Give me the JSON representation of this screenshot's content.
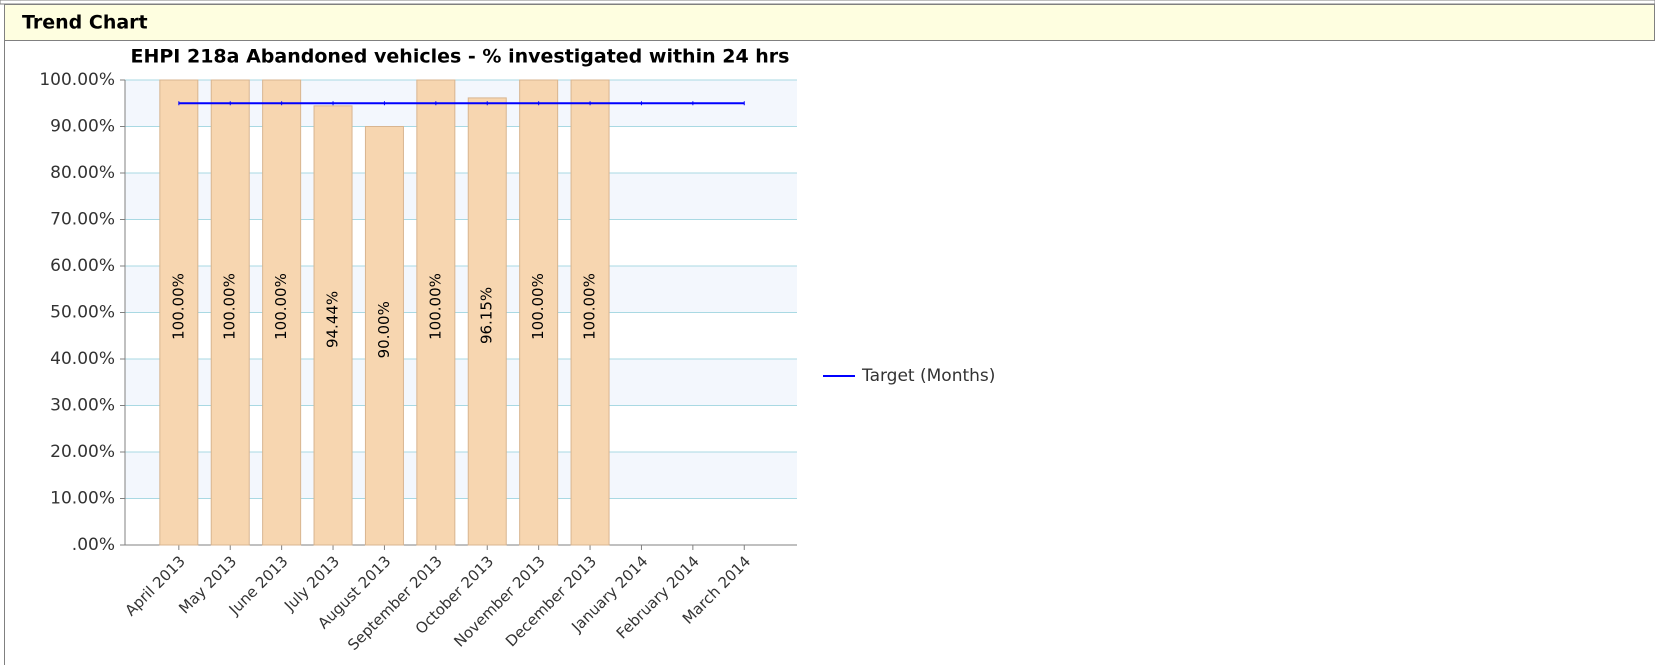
{
  "header": {
    "title": "Trend Chart"
  },
  "chart_data": {
    "type": "bar",
    "title": "EHPI 218a Abandoned vehicles - % investigated within 24 hrs",
    "categories": [
      "April 2013",
      "May 2013",
      "June 2013",
      "July 2013",
      "August 2013",
      "September 2013",
      "October 2013",
      "November 2013",
      "December 2013",
      "January 2014",
      "February 2014",
      "March 2014"
    ],
    "values": [
      100,
      100,
      100,
      94.44,
      90,
      100,
      96.15,
      100,
      100,
      null,
      null,
      null
    ],
    "value_labels": [
      "100.00%",
      "100.00%",
      "100.00%",
      "94.44%",
      "90.00%",
      "100.00%",
      "96.15%",
      "100.00%",
      "100.00%",
      null,
      null,
      null
    ],
    "color": "#f7d6b0",
    "series": [
      {
        "name": "Target (Months)",
        "color": "#0000ff",
        "values": [
          95,
          95,
          95,
          95,
          95,
          95,
          95,
          95,
          95,
          95,
          95,
          95
        ]
      }
    ],
    "ylim": [
      0,
      100
    ],
    "yticks": [
      {
        "value": 0,
        "label": ".00%"
      },
      {
        "value": 10,
        "label": "10.00%"
      },
      {
        "value": 20,
        "label": "20.00%"
      },
      {
        "value": 30,
        "label": "30.00%"
      },
      {
        "value": 40,
        "label": "40.00%"
      },
      {
        "value": 50,
        "label": "50.00%"
      },
      {
        "value": 60,
        "label": "60.00%"
      },
      {
        "value": 70,
        "label": "70.00%"
      },
      {
        "value": 80,
        "label": "80.00%"
      },
      {
        "value": 90,
        "label": "90.00%"
      },
      {
        "value": 100,
        "label": "100.00%"
      }
    ],
    "grid": true,
    "legend": "right"
  }
}
